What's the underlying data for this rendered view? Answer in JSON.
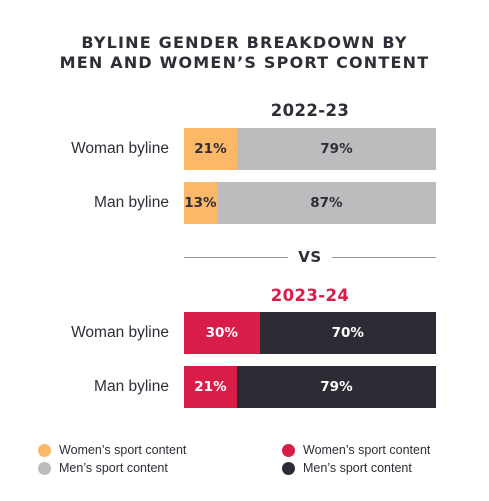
{
  "title_line1": "BYLINE GENDER BREAKDOWN BY",
  "title_line2": "MEN AND WOMEN’S SPORT CONTENT",
  "vs_label": "VS",
  "colors": {
    "women_2022": "#fbb866",
    "men_2022": "#bcbcbe",
    "women_2023": "#d81d48",
    "men_2023": "#2e2b35"
  },
  "chart_data": [
    {
      "type": "bar",
      "orientation": "horizontal",
      "stacked": true,
      "title": "2022-23",
      "categories": [
        "Woman byline",
        "Man byline"
      ],
      "series": [
        {
          "name": "Women’s sport content",
          "values": [
            21,
            13
          ],
          "labels": [
            "21%",
            "13%"
          ],
          "color": "#fbb866"
        },
        {
          "name": "Men’s sport content",
          "values": [
            79,
            87
          ],
          "labels": [
            "79%",
            "87%"
          ],
          "color": "#bcbcbe"
        }
      ],
      "xlim": [
        0,
        100
      ]
    },
    {
      "type": "bar",
      "orientation": "horizontal",
      "stacked": true,
      "title": "2023-24",
      "categories": [
        "Woman byline",
        "Man byline"
      ],
      "series": [
        {
          "name": "Women’s sport content",
          "values": [
            30,
            21
          ],
          "labels": [
            "30%",
            "21%"
          ],
          "color": "#d81d48"
        },
        {
          "name": "Men’s sport content",
          "values": [
            70,
            79
          ],
          "labels": [
            "70%",
            "79%"
          ],
          "color": "#2e2b35"
        }
      ],
      "xlim": [
        0,
        100
      ]
    }
  ],
  "legend": [
    {
      "label": "Women’s sport content",
      "color": "#fbb866"
    },
    {
      "label": "Men’s sport content",
      "color": "#bcbcbe"
    },
    {
      "label": "Women’s sport content",
      "color": "#d81d48"
    },
    {
      "label": "Men’s sport content",
      "color": "#2e2b35"
    }
  ]
}
